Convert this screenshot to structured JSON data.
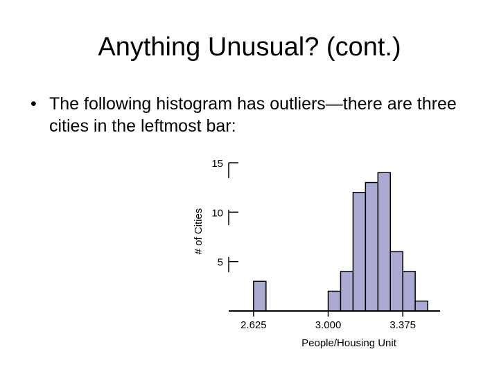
{
  "slide": {
    "title": "Anything Unusual? (cont.)",
    "bullet_symbol": "•",
    "bullet_text": "The following histogram has outliers—there are three cities in the leftmost bar:"
  },
  "colors": {
    "bar_fill": "#aaaad2",
    "bar_stroke": "#000000",
    "axis": "#000000"
  },
  "chart_data": {
    "type": "bar",
    "title": "",
    "xlabel": "People/Housing Unit",
    "ylabel": "# of Cities",
    "bin_width": 0.0625,
    "bins": [
      {
        "start": 2.5625,
        "value": 0
      },
      {
        "start": 2.625,
        "value": 3
      },
      {
        "start": 2.6875,
        "value": 0
      },
      {
        "start": 2.75,
        "value": 0
      },
      {
        "start": 2.8125,
        "value": 0
      },
      {
        "start": 2.875,
        "value": 0
      },
      {
        "start": 2.9375,
        "value": 0
      },
      {
        "start": 3.0,
        "value": 2
      },
      {
        "start": 3.0625,
        "value": 4
      },
      {
        "start": 3.125,
        "value": 12
      },
      {
        "start": 3.1875,
        "value": 13
      },
      {
        "start": 3.25,
        "value": 14
      },
      {
        "start": 3.3125,
        "value": 6
      },
      {
        "start": 3.375,
        "value": 4
      },
      {
        "start": 3.4375,
        "value": 1
      }
    ],
    "xlim": [
      2.5,
      3.5625
    ],
    "ylim": [
      0,
      15
    ],
    "x_ticks": [
      {
        "value": 2.625,
        "label": "2.625"
      },
      {
        "value": 3.0,
        "label": "3.000"
      },
      {
        "value": 3.375,
        "label": "3.375"
      }
    ],
    "y_ticks": [
      {
        "value": 5,
        "label": "5"
      },
      {
        "value": 10,
        "label": "10"
      },
      {
        "value": 15,
        "label": "15"
      }
    ],
    "grid": false,
    "legend": "none"
  }
}
